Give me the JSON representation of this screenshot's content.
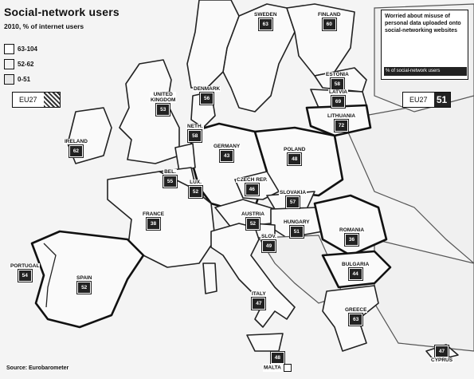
{
  "title": "Social-network users",
  "subtitle": "2010, % of internet users",
  "legend": [
    {
      "label": "63-104",
      "level": "high"
    },
    {
      "label": "52-62",
      "level": "mid"
    },
    {
      "label": "0-51",
      "level": "low"
    }
  ],
  "eu_left": {
    "label": "EU27",
    "value": ""
  },
  "eu_right": {
    "label": "EU27",
    "value": "51"
  },
  "callout": {
    "title": "Worried about misuse of personal data uploaded onto social-networking websites",
    "footnote": "% of social-network users"
  },
  "source": "Source: Eurobarometer",
  "countries": [
    {
      "id": "sweden",
      "name": "SWEDEN",
      "value": "63"
    },
    {
      "id": "finland",
      "name": "FINLAND",
      "value": "60"
    },
    {
      "id": "estonia",
      "name": "ESTONIA",
      "value": "58"
    },
    {
      "id": "latvia",
      "name": "LATVIA",
      "value": "69"
    },
    {
      "id": "lithuania",
      "name": "LITHUANIA",
      "value": "72"
    },
    {
      "id": "denmark",
      "name": "DENMARK",
      "value": "56"
    },
    {
      "id": "uk",
      "name": "UNITED\nKINGDOM",
      "value": "53"
    },
    {
      "id": "ireland",
      "name": "IRELAND",
      "value": "62"
    },
    {
      "id": "netherlands",
      "name": "NETH.",
      "value": "58"
    },
    {
      "id": "germany",
      "name": "GERMANY",
      "value": "43"
    },
    {
      "id": "poland",
      "name": "POLAND",
      "value": "48"
    },
    {
      "id": "belgium",
      "name": "BEL.",
      "value": "55"
    },
    {
      "id": "lux",
      "name": "LUX.",
      "value": "52"
    },
    {
      "id": "czech",
      "name": "CZECH REP.",
      "value": "46"
    },
    {
      "id": "slovakia",
      "name": "SLOVAKIA",
      "value": "57"
    },
    {
      "id": "austria",
      "name": "AUSTRIA",
      "value": "52"
    },
    {
      "id": "hungary",
      "name": "HUNGARY",
      "value": "51"
    },
    {
      "id": "slovenia",
      "name": "SLOV.",
      "value": "49"
    },
    {
      "id": "france",
      "name": "FRANCE",
      "value": "38"
    },
    {
      "id": "romania",
      "name": "ROMANIA",
      "value": "36"
    },
    {
      "id": "bulgaria",
      "name": "BULGARIA",
      "value": "44"
    },
    {
      "id": "portugal",
      "name": "PORTUGAL",
      "value": "54"
    },
    {
      "id": "spain",
      "name": "SPAIN",
      "value": "52"
    },
    {
      "id": "italy",
      "name": "ITALY",
      "value": "47"
    },
    {
      "id": "greece",
      "name": "GREECE",
      "value": "63"
    },
    {
      "id": "cyprus",
      "name": "CYPRUS",
      "value": "47"
    },
    {
      "id": "malta",
      "name": "MALTA",
      "value": "48"
    }
  ]
}
